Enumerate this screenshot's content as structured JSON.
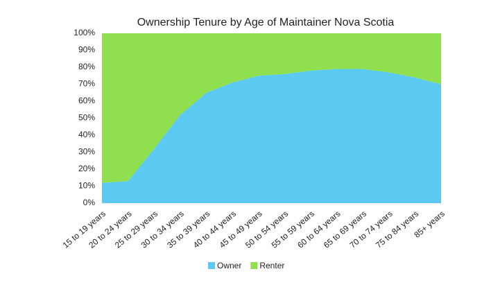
{
  "chart_data": {
    "type": "area",
    "stacked": true,
    "title": "Ownership Tenure by Age of Maintainer Nova Scotia",
    "categories": [
      "15 to 19 years",
      "20 to 24 years",
      "25 to 29 years",
      "30 to 34 years",
      "35 to 39 years",
      "40 to 44 years",
      "45 to 49 years",
      "50 to 54 years",
      "55 to 59 years",
      "60 to 64 years",
      "65 to 69 years",
      "70 to 74 years",
      "75 to 84 years",
      "85+ years"
    ],
    "series": [
      {
        "name": "Owner",
        "color": "#5bc9f2",
        "values": [
          12,
          13,
          32,
          52,
          65,
          71,
          75,
          76,
          78,
          79,
          79,
          77,
          74,
          70
        ]
      },
      {
        "name": "Renter",
        "color": "#8fdf4f",
        "values": [
          88,
          87,
          68,
          48,
          35,
          29,
          25,
          24,
          22,
          21,
          21,
          23,
          26,
          30
        ]
      }
    ],
    "ylim": [
      0,
      100
    ],
    "yticks": [
      {
        "value": 0,
        "label": "0%"
      },
      {
        "value": 10,
        "label": "10%"
      },
      {
        "value": 20,
        "label": "20%"
      },
      {
        "value": 30,
        "label": "30%"
      },
      {
        "value": 40,
        "label": "40%"
      },
      {
        "value": 50,
        "label": "50%"
      },
      {
        "value": 60,
        "label": "60%"
      },
      {
        "value": 70,
        "label": "70%"
      },
      {
        "value": 80,
        "label": "80%"
      },
      {
        "value": 90,
        "label": "90%"
      },
      {
        "value": 100,
        "label": "100%"
      }
    ],
    "grid": false,
    "legend": "bottom"
  }
}
